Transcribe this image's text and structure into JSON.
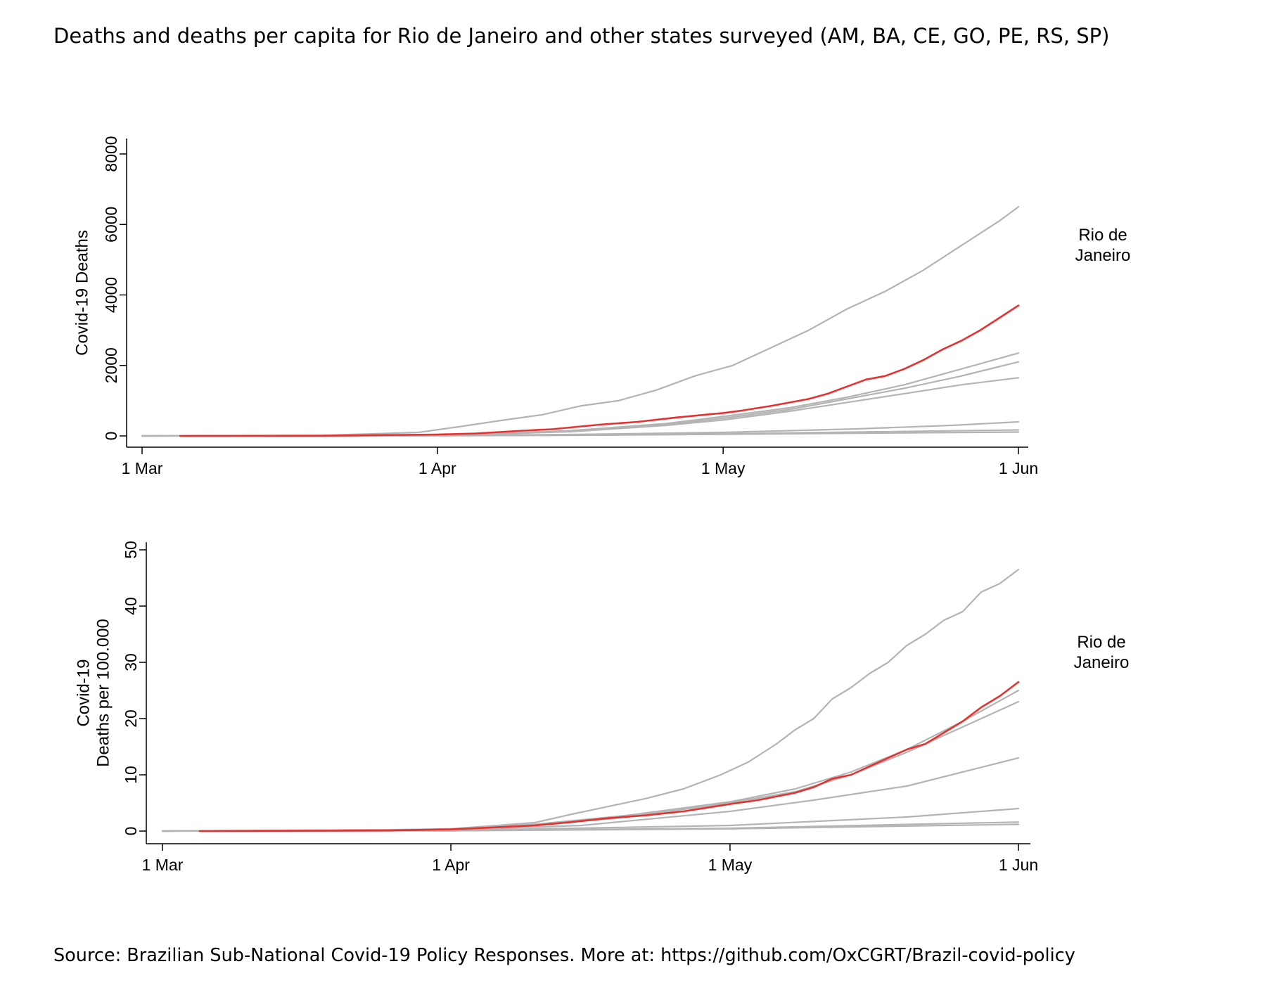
{
  "title": "Deaths and deaths per capita for Rio de Janeiro and other states surveyed (AM, BA, CE, GO, PE, RS, SP)",
  "source": "Source: Brazilian Sub-National Covid-19 Policy Responses. More at: https://github.com/OxCGRT/Brazil-covid-policy",
  "colors": {
    "highlight": "#e8302f",
    "others": "#b4b4b4",
    "axis": "#000000"
  },
  "chart_data": [
    {
      "type": "line",
      "ylabel": [
        "Covid-19 Deaths"
      ],
      "ylim": [
        0,
        8000
      ],
      "yticks": [
        0,
        2000,
        4000,
        6000,
        8000
      ],
      "xlim": [
        "2020-03-01",
        "2020-06-01"
      ],
      "xticks": [
        {
          "date": "2020-03-01",
          "label": "1 Mar"
        },
        {
          "date": "2020-04-01",
          "label": "1 Apr"
        },
        {
          "date": "2020-05-01",
          "label": "1 May"
        },
        {
          "date": "2020-06-01",
          "label": "1 Jun"
        }
      ],
      "highlight_label": [
        "Rio de",
        "Janeiro"
      ],
      "series": [
        {
          "highlight": true,
          "points": [
            [
              "2020-03-05",
              0
            ],
            [
              "2020-03-20",
              5
            ],
            [
              "2020-04-01",
              40
            ],
            [
              "2020-04-05",
              70
            ],
            [
              "2020-04-10",
              150
            ],
            [
              "2020-04-13",
              190
            ],
            [
              "2020-04-18",
              320
            ],
            [
              "2020-04-22",
              400
            ],
            [
              "2020-04-26",
              520
            ],
            [
              "2020-05-01",
              650
            ],
            [
              "2020-05-03",
              720
            ],
            [
              "2020-05-06",
              850
            ],
            [
              "2020-05-08",
              950
            ],
            [
              "2020-05-10",
              1050
            ],
            [
              "2020-05-12",
              1200
            ],
            [
              "2020-05-14",
              1400
            ],
            [
              "2020-05-16",
              1600
            ],
            [
              "2020-05-18",
              1700
            ],
            [
              "2020-05-20",
              1900
            ],
            [
              "2020-05-22",
              2150
            ],
            [
              "2020-05-24",
              2450
            ],
            [
              "2020-05-26",
              2700
            ],
            [
              "2020-05-28",
              3000
            ],
            [
              "2020-05-30",
              3350
            ],
            [
              "2020-06-01",
              3700
            ]
          ]
        },
        {
          "highlight": false,
          "points": [
            [
              "2020-03-01",
              0
            ],
            [
              "2020-03-20",
              15
            ],
            [
              "2020-03-30",
              100
            ],
            [
              "2020-04-03",
              250
            ],
            [
              "2020-04-08",
              450
            ],
            [
              "2020-04-12",
              600
            ],
            [
              "2020-04-16",
              850
            ],
            [
              "2020-04-20",
              1000
            ],
            [
              "2020-04-24",
              1300
            ],
            [
              "2020-04-28",
              1700
            ],
            [
              "2020-05-02",
              2000
            ],
            [
              "2020-05-06",
              2500
            ],
            [
              "2020-05-10",
              3000
            ],
            [
              "2020-05-14",
              3600
            ],
            [
              "2020-05-18",
              4100
            ],
            [
              "2020-05-22",
              4700
            ],
            [
              "2020-05-26",
              5400
            ],
            [
              "2020-05-30",
              6100
            ],
            [
              "2020-06-01",
              6500
            ]
          ]
        },
        {
          "highlight": false,
          "points": [
            [
              "2020-03-01",
              0
            ],
            [
              "2020-03-25",
              10
            ],
            [
              "2020-04-05",
              50
            ],
            [
              "2020-04-15",
              150
            ],
            [
              "2020-04-25",
              350
            ],
            [
              "2020-05-01",
              550
            ],
            [
              "2020-05-08",
              800
            ],
            [
              "2020-05-14",
              1100
            ],
            [
              "2020-05-20",
              1450
            ],
            [
              "2020-05-26",
              1900
            ],
            [
              "2020-06-01",
              2350
            ]
          ]
        },
        {
          "highlight": false,
          "points": [
            [
              "2020-03-01",
              0
            ],
            [
              "2020-03-25",
              10
            ],
            [
              "2020-04-05",
              40
            ],
            [
              "2020-04-15",
              130
            ],
            [
              "2020-04-25",
              330
            ],
            [
              "2020-05-01",
              500
            ],
            [
              "2020-05-08",
              750
            ],
            [
              "2020-05-14",
              1050
            ],
            [
              "2020-05-20",
              1350
            ],
            [
              "2020-05-26",
              1700
            ],
            [
              "2020-06-01",
              2100
            ]
          ]
        },
        {
          "highlight": false,
          "points": [
            [
              "2020-03-01",
              0
            ],
            [
              "2020-03-25",
              10
            ],
            [
              "2020-04-05",
              40
            ],
            [
              "2020-04-15",
              120
            ],
            [
              "2020-04-25",
              300
            ],
            [
              "2020-05-01",
              450
            ],
            [
              "2020-05-08",
              700
            ],
            [
              "2020-05-14",
              950
            ],
            [
              "2020-05-20",
              1200
            ],
            [
              "2020-05-26",
              1450
            ],
            [
              "2020-06-01",
              1650
            ]
          ]
        },
        {
          "highlight": false,
          "points": [
            [
              "2020-03-01",
              0
            ],
            [
              "2020-03-30",
              5
            ],
            [
              "2020-04-15",
              40
            ],
            [
              "2020-05-01",
              100
            ],
            [
              "2020-05-15",
              200
            ],
            [
              "2020-05-25",
              300
            ],
            [
              "2020-06-01",
              400
            ]
          ]
        },
        {
          "highlight": false,
          "points": [
            [
              "2020-03-01",
              0
            ],
            [
              "2020-03-30",
              5
            ],
            [
              "2020-04-15",
              25
            ],
            [
              "2020-05-01",
              60
            ],
            [
              "2020-05-15",
              110
            ],
            [
              "2020-06-01",
              170
            ]
          ]
        },
        {
          "highlight": false,
          "points": [
            [
              "2020-03-01",
              0
            ],
            [
              "2020-03-30",
              3
            ],
            [
              "2020-04-15",
              15
            ],
            [
              "2020-05-01",
              45
            ],
            [
              "2020-05-15",
              75
            ],
            [
              "2020-06-01",
              110
            ]
          ]
        }
      ]
    },
    {
      "type": "line",
      "ylabel": [
        "Covid-19",
        "Deaths per 100.000"
      ],
      "ylim": [
        0,
        50
      ],
      "yticks": [
        0,
        10,
        20,
        30,
        40,
        50
      ],
      "xlim": [
        "2020-03-01",
        "2020-06-01"
      ],
      "xticks": [
        {
          "date": "2020-03-01",
          "label": "1 Mar"
        },
        {
          "date": "2020-04-01",
          "label": "1 Apr"
        },
        {
          "date": "2020-05-01",
          "label": "1 May"
        },
        {
          "date": "2020-06-01",
          "label": "1 Jun"
        }
      ],
      "highlight_label": [
        "Rio de",
        "Janeiro"
      ],
      "series": [
        {
          "highlight": true,
          "points": [
            [
              "2020-03-05",
              0
            ],
            [
              "2020-03-25",
              0.1
            ],
            [
              "2020-04-01",
              0.3
            ],
            [
              "2020-04-05",
              0.6
            ],
            [
              "2020-04-10",
              1
            ],
            [
              "2020-04-14",
              1.6
            ],
            [
              "2020-04-18",
              2.3
            ],
            [
              "2020-04-22",
              2.8
            ],
            [
              "2020-04-26",
              3.5
            ],
            [
              "2020-05-01",
              4.8
            ],
            [
              "2020-05-04",
              5.5
            ],
            [
              "2020-05-08",
              6.8
            ],
            [
              "2020-05-10",
              7.8
            ],
            [
              "2020-05-12",
              9.3
            ],
            [
              "2020-05-14",
              10
            ],
            [
              "2020-05-16",
              11.5
            ],
            [
              "2020-05-18",
              13
            ],
            [
              "2020-05-20",
              14.5
            ],
            [
              "2020-05-22",
              15.5
            ],
            [
              "2020-05-24",
              17.5
            ],
            [
              "2020-05-26",
              19.5
            ],
            [
              "2020-05-28",
              22
            ],
            [
              "2020-05-30",
              24
            ],
            [
              "2020-06-01",
              26.5
            ]
          ]
        },
        {
          "highlight": false,
          "points": [
            [
              "2020-03-01",
              0
            ],
            [
              "2020-03-25",
              0.2
            ],
            [
              "2020-04-01",
              0.4
            ],
            [
              "2020-04-06",
              1
            ],
            [
              "2020-04-10",
              1.5
            ],
            [
              "2020-04-14",
              3
            ],
            [
              "2020-04-18",
              4.4
            ],
            [
              "2020-04-22",
              5.8
            ],
            [
              "2020-04-26",
              7.5
            ],
            [
              "2020-04-30",
              10
            ],
            [
              "2020-05-03",
              12.3
            ],
            [
              "2020-05-06",
              15.5
            ],
            [
              "2020-05-08",
              18
            ],
            [
              "2020-05-10",
              20
            ],
            [
              "2020-05-12",
              23.5
            ],
            [
              "2020-05-14",
              25.5
            ],
            [
              "2020-05-16",
              28
            ],
            [
              "2020-05-18",
              30
            ],
            [
              "2020-05-20",
              33
            ],
            [
              "2020-05-22",
              35
            ],
            [
              "2020-05-24",
              37.5
            ],
            [
              "2020-05-26",
              39
            ],
            [
              "2020-05-28",
              42.5
            ],
            [
              "2020-05-30",
              44
            ],
            [
              "2020-06-01",
              46.5
            ]
          ]
        },
        {
          "highlight": false,
          "points": [
            [
              "2020-03-01",
              0
            ],
            [
              "2020-04-01",
              0.3
            ],
            [
              "2020-04-10",
              1.2
            ],
            [
              "2020-04-20",
              2.8
            ],
            [
              "2020-05-01",
              5.2
            ],
            [
              "2020-05-08",
              7.5
            ],
            [
              "2020-05-14",
              10.5
            ],
            [
              "2020-05-20",
              14.5
            ],
            [
              "2020-05-26",
              19.5
            ],
            [
              "2020-06-01",
              25
            ]
          ]
        },
        {
          "highlight": false,
          "points": [
            [
              "2020-03-01",
              0
            ],
            [
              "2020-04-01",
              0.3
            ],
            [
              "2020-04-10",
              1
            ],
            [
              "2020-04-20",
              2.5
            ],
            [
              "2020-05-01",
              5
            ],
            [
              "2020-05-08",
              7
            ],
            [
              "2020-05-14",
              10
            ],
            [
              "2020-05-20",
              14
            ],
            [
              "2020-05-26",
              18.5
            ],
            [
              "2020-06-01",
              23
            ]
          ]
        },
        {
          "highlight": false,
          "points": [
            [
              "2020-03-01",
              0
            ],
            [
              "2020-04-01",
              0.2
            ],
            [
              "2020-04-15",
              1
            ],
            [
              "2020-05-01",
              3.5
            ],
            [
              "2020-05-10",
              5.5
            ],
            [
              "2020-05-20",
              8
            ],
            [
              "2020-06-01",
              13
            ]
          ]
        },
        {
          "highlight": false,
          "points": [
            [
              "2020-03-01",
              0
            ],
            [
              "2020-04-01",
              0.1
            ],
            [
              "2020-05-01",
              1
            ],
            [
              "2020-05-20",
              2.5
            ],
            [
              "2020-06-01",
              4
            ]
          ]
        },
        {
          "highlight": false,
          "points": [
            [
              "2020-03-01",
              0
            ],
            [
              "2020-04-01",
              0.1
            ],
            [
              "2020-05-01",
              0.5
            ],
            [
              "2020-06-01",
              1.6
            ]
          ]
        },
        {
          "highlight": false,
          "points": [
            [
              "2020-03-01",
              0
            ],
            [
              "2020-04-01",
              0.05
            ],
            [
              "2020-05-01",
              0.4
            ],
            [
              "2020-06-01",
              1.2
            ]
          ]
        }
      ]
    }
  ]
}
